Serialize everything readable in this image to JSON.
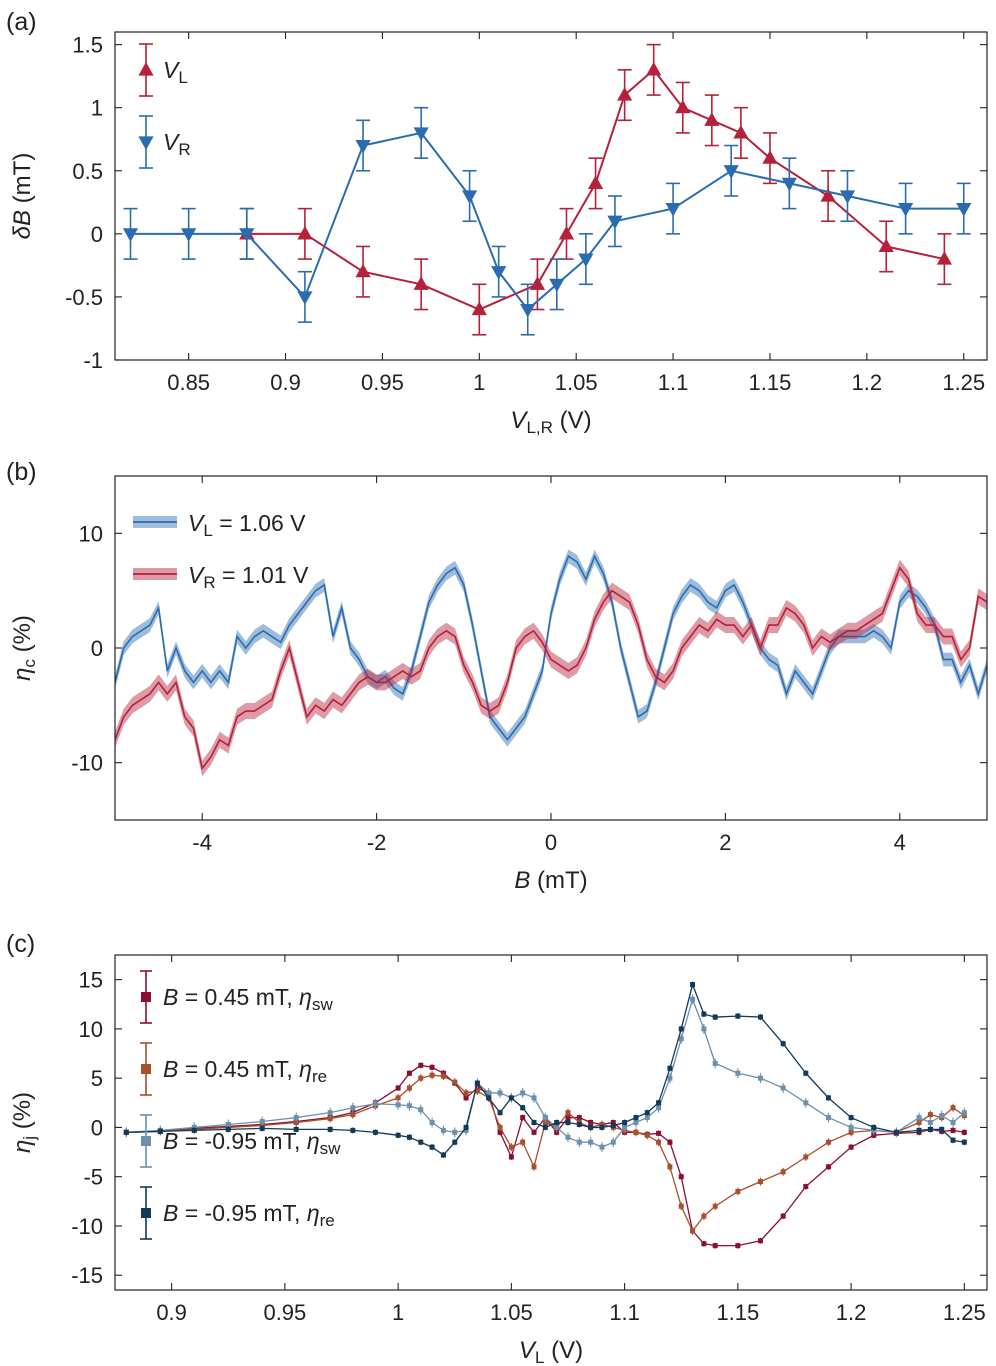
{
  "colors": {
    "red": "#b5203a",
    "blue": "#2b6cb0",
    "dark_red": "#8b1030",
    "orange": "#a7502c",
    "light_blue": "#6d90ac",
    "navy": "#123a5a"
  },
  "chart_data": [
    {
      "type": "line",
      "panel_label": "(a)",
      "xlabel": {
        "main": "V",
        "sub": "L,R",
        "unit": " (V)"
      },
      "ylabel": {
        "main": "δB",
        "unit": " (mT)"
      },
      "xlim": [
        0.812,
        1.262
      ],
      "ylim": [
        -1.0,
        1.6
      ],
      "xticks": [
        0.85,
        0.9,
        0.95,
        1.0,
        1.05,
        1.1,
        1.15,
        1.2,
        1.25
      ],
      "xtick_labels": [
        "0.85",
        "0.9",
        "0.95",
        "1",
        "1.05",
        "1.1",
        "1.15",
        "1.2",
        "1.25"
      ],
      "yticks": [
        -1,
        -0.5,
        0,
        0.5,
        1,
        1.5
      ],
      "ytick_labels": [
        "-1",
        "-0.5",
        "0",
        "0.5",
        "1",
        "1.5"
      ],
      "series": [
        {
          "name": "V_L",
          "label_main": "V",
          "label_sub": "L",
          "color": "#b5203a",
          "marker": "triangle-up",
          "x": [
            0.88,
            0.91,
            0.94,
            0.97,
            1.0,
            1.03,
            1.045,
            1.06,
            1.075,
            1.09,
            1.105,
            1.12,
            1.135,
            1.15,
            1.18,
            1.21,
            1.24
          ],
          "y": [
            0,
            0,
            -0.3,
            -0.4,
            -0.6,
            -0.4,
            0,
            0.4,
            1.1,
            1.3,
            1.0,
            0.9,
            0.8,
            0.6,
            0.3,
            -0.1,
            -0.2
          ],
          "err": 0.2
        },
        {
          "name": "V_R",
          "label_main": "V",
          "label_sub": "R",
          "color": "#2b6cb0",
          "marker": "triangle-down",
          "x": [
            0.82,
            0.85,
            0.88,
            0.91,
            0.94,
            0.97,
            0.995,
            1.01,
            1.025,
            1.04,
            1.055,
            1.07,
            1.1,
            1.13,
            1.16,
            1.19,
            1.22,
            1.25
          ],
          "y": [
            0,
            0,
            0,
            -0.5,
            0.7,
            0.8,
            0.3,
            -0.3,
            -0.6,
            -0.4,
            -0.2,
            0.1,
            0.2,
            0.5,
            0.4,
            0.3,
            0.2,
            0.2
          ],
          "err": 0.2
        }
      ]
    },
    {
      "type": "line",
      "panel_label": "(b)",
      "xlabel": {
        "main": "B",
        "sub": "",
        "unit": " (mT)"
      },
      "ylabel": {
        "main": "η",
        "sub": "c",
        "unit": " (%)"
      },
      "xlim": [
        -5,
        5
      ],
      "ylim": [
        -15,
        15
      ],
      "xticks": [
        -4,
        -2,
        0,
        2,
        4
      ],
      "xtick_labels": [
        "-4",
        "-2",
        "0",
        "2",
        "4"
      ],
      "yticks": [
        -10,
        0,
        10
      ],
      "ytick_labels": [
        "-10",
        "0",
        "10"
      ],
      "series": [
        {
          "name": "V_L = 1.06 V",
          "label_main": "V",
          "label_sub": "L",
          "label_rest": " = 1.06 V",
          "color": "#2b6cb0",
          "x": [
            -5,
            -4.9,
            -4.8,
            -4.7,
            -4.6,
            -4.5,
            -4.4,
            -4.3,
            -4.2,
            -4.1,
            -4.0,
            -3.9,
            -3.8,
            -3.7,
            -3.6,
            -3.5,
            -3.4,
            -3.3,
            -3.2,
            -3.1,
            -3.0,
            -2.9,
            -2.8,
            -2.7,
            -2.6,
            -2.5,
            -2.4,
            -2.3,
            -2.2,
            -2.1,
            -2.0,
            -1.9,
            -1.8,
            -1.7,
            -1.6,
            -1.5,
            -1.4,
            -1.3,
            -1.2,
            -1.1,
            -1.0,
            -0.9,
            -0.8,
            -0.7,
            -0.6,
            -0.5,
            -0.4,
            -0.3,
            -0.2,
            -0.1,
            0.0,
            0.1,
            0.2,
            0.3,
            0.4,
            0.5,
            0.6,
            0.7,
            0.8,
            0.9,
            1.0,
            1.1,
            1.2,
            1.3,
            1.4,
            1.5,
            1.6,
            1.7,
            1.8,
            1.9,
            2.0,
            2.1,
            2.2,
            2.3,
            2.4,
            2.5,
            2.6,
            2.7,
            2.8,
            2.9,
            3.0,
            3.1,
            3.2,
            3.3,
            3.4,
            3.5,
            3.6,
            3.7,
            3.8,
            3.9,
            4.0,
            4.1,
            4.2,
            4.3,
            4.4,
            4.5,
            4.6,
            4.7,
            4.8,
            4.9,
            5.0
          ],
          "y": [
            -3,
            0,
            1,
            1.5,
            2,
            3.5,
            -2,
            0,
            -2,
            -3,
            -2,
            -3,
            -2,
            -3,
            1,
            0,
            1,
            1.5,
            1,
            0.5,
            2,
            3,
            4,
            5,
            5.5,
            1,
            3.5,
            0,
            -1,
            -2.5,
            -3,
            -2.5,
            -3.5,
            -4,
            -2,
            1,
            4,
            5.5,
            6.5,
            7,
            5.5,
            2,
            -2,
            -6,
            -7,
            -8,
            -7,
            -6,
            -4,
            -2,
            3,
            6,
            8,
            7.5,
            6,
            8,
            6.5,
            4,
            0,
            -3,
            -6,
            -5.5,
            -3,
            0,
            3,
            4.5,
            5.5,
            5,
            4,
            3.5,
            5,
            5.5,
            4,
            2,
            0,
            -1,
            -1.5,
            -4,
            -2,
            -3,
            -4,
            -2,
            0,
            1,
            1,
            1,
            1,
            1.5,
            1,
            0,
            4,
            5,
            4.5,
            3.5,
            2,
            -1,
            -1,
            -3,
            -1.5,
            -4,
            -1.5
          ],
          "band": 0.6
        },
        {
          "name": "V_R = 1.01 V",
          "label_main": "V",
          "label_sub": "R",
          "label_rest": " = 1.01 V",
          "color": "#b5203a",
          "x": [
            -5,
            -4.9,
            -4.8,
            -4.7,
            -4.6,
            -4.5,
            -4.4,
            -4.3,
            -4.2,
            -4.1,
            -4.0,
            -3.9,
            -3.8,
            -3.7,
            -3.6,
            -3.5,
            -3.4,
            -3.3,
            -3.2,
            -3.1,
            -3.0,
            -2.9,
            -2.8,
            -2.7,
            -2.6,
            -2.5,
            -2.4,
            -2.3,
            -2.2,
            -2.1,
            -2.0,
            -1.9,
            -1.8,
            -1.7,
            -1.6,
            -1.5,
            -1.4,
            -1.3,
            -1.2,
            -1.1,
            -1.0,
            -0.9,
            -0.8,
            -0.7,
            -0.6,
            -0.5,
            -0.4,
            -0.3,
            -0.2,
            -0.1,
            0.0,
            0.1,
            0.2,
            0.3,
            0.4,
            0.5,
            0.6,
            0.7,
            0.8,
            0.9,
            1.0,
            1.1,
            1.2,
            1.3,
            1.4,
            1.5,
            1.6,
            1.7,
            1.8,
            1.9,
            2.0,
            2.1,
            2.2,
            2.3,
            2.4,
            2.5,
            2.6,
            2.7,
            2.8,
            2.9,
            3.0,
            3.1,
            3.2,
            3.3,
            3.4,
            3.5,
            3.6,
            3.7,
            3.8,
            3.9,
            4.0,
            4.1,
            4.2,
            4.3,
            4.4,
            4.5,
            4.6,
            4.7,
            4.8,
            4.9,
            5.0
          ],
          "y": [
            -8,
            -6,
            -5,
            -4.5,
            -4,
            -3,
            -4,
            -3,
            -6,
            -7,
            -10.5,
            -9.5,
            -8,
            -8.5,
            -6,
            -5.5,
            -5.5,
            -5,
            -4.5,
            -2,
            0,
            -3,
            -6,
            -5,
            -5.5,
            -4.5,
            -5,
            -4,
            -3,
            -2.5,
            -3,
            -3,
            -2.5,
            -2,
            -2.5,
            -2,
            0,
            1,
            1.5,
            1,
            -1.5,
            -3,
            -5,
            -5.5,
            -5,
            -3,
            0,
            1,
            1.5,
            0.5,
            -1,
            -1.5,
            -2,
            -1.5,
            0,
            2.5,
            4,
            5,
            4.5,
            4,
            2,
            -1,
            -2.5,
            -3,
            -2,
            0,
            1,
            2,
            1.5,
            2.5,
            2,
            2,
            1,
            2,
            0,
            2,
            2,
            3.5,
            3,
            2,
            0,
            1,
            0.5,
            1,
            1.5,
            1.5,
            2,
            2.5,
            3,
            5,
            7,
            6,
            3,
            2,
            2,
            1,
            1,
            -1,
            0,
            4.5,
            4
          ],
          "band": 0.7
        }
      ]
    },
    {
      "type": "line",
      "panel_label": "(c)",
      "xlabel": {
        "main": "V",
        "sub": "L",
        "unit": " (V)"
      },
      "ylabel": {
        "main": "η",
        "sub": "j",
        "unit": " (%)"
      },
      "xlim": [
        0.875,
        1.26
      ],
      "ylim": [
        -16.5,
        17.5
      ],
      "xticks": [
        0.9,
        0.95,
        1.0,
        1.05,
        1.1,
        1.15,
        1.2,
        1.25
      ],
      "xtick_labels": [
        "0.9",
        "0.95",
        "1",
        "1.05",
        "1.1",
        "1.15",
        "1.2",
        "1.25"
      ],
      "yticks": [
        -15,
        -10,
        -5,
        0,
        5,
        10,
        15
      ],
      "ytick_labels": [
        "-15",
        "-10",
        "-5",
        "0",
        "5",
        "10",
        "15"
      ],
      "x": [
        0.88,
        0.895,
        0.91,
        0.925,
        0.94,
        0.955,
        0.97,
        0.98,
        0.99,
        1.0,
        1.005,
        1.01,
        1.015,
        1.02,
        1.025,
        1.03,
        1.035,
        1.04,
        1.045,
        1.05,
        1.055,
        1.06,
        1.065,
        1.07,
        1.075,
        1.08,
        1.085,
        1.09,
        1.095,
        1.1,
        1.105,
        1.11,
        1.115,
        1.12,
        1.125,
        1.13,
        1.135,
        1.14,
        1.15,
        1.16,
        1.17,
        1.18,
        1.19,
        1.2,
        1.21,
        1.22,
        1.23,
        1.235,
        1.24,
        1.245,
        1.25
      ],
      "series": [
        {
          "name": "B = 0.45 mT, η_sw",
          "label_pre": "B",
          "label_mid": " = 0.45 mT, ",
          "label_eta": "η",
          "label_sub": "sw",
          "color": "#8b1030",
          "y": [
            -0.5,
            -0.4,
            -0.1,
            0.1,
            0.3,
            0.6,
            1.0,
            1.5,
            2.5,
            4.0,
            5.5,
            6.3,
            6.1,
            5.5,
            4.5,
            3.0,
            4.0,
            3.5,
            -0.5,
            -3.0,
            1.0,
            -0.5,
            1.0,
            -0.5,
            1.0,
            1.0,
            0.5,
            0.3,
            0.5,
            -0.5,
            -0.5,
            -0.7,
            -0.6,
            -1.5,
            -5.0,
            -10.5,
            -11.8,
            -12.0,
            -12.0,
            -11.5,
            -9.0,
            -6.0,
            -4.0,
            -2.0,
            -0.8,
            -0.6,
            -0.5,
            -0.2,
            -0.4,
            -0.3,
            -0.5
          ],
          "err": 0.3
        },
        {
          "name": "B = 0.45 mT, η_re",
          "label_pre": "B",
          "label_mid": " = 0.45 mT, ",
          "label_eta": "η",
          "label_sub": "re",
          "color": "#a7502c",
          "y": [
            -0.5,
            -0.4,
            -0.2,
            0.0,
            0.2,
            0.5,
            0.9,
            1.3,
            2.2,
            3.0,
            4.0,
            5.0,
            5.3,
            5.2,
            4.6,
            3.5,
            3.7,
            3.0,
            0.0,
            -2.0,
            -1.5,
            -4.0,
            0.5,
            0.0,
            1.5,
            0.5,
            0.0,
            0.3,
            0.0,
            -0.3,
            -0.5,
            -0.8,
            -1.5,
            -4.0,
            -8.0,
            -10.5,
            -9.0,
            -8.0,
            -6.5,
            -5.5,
            -4.5,
            -3.0,
            -1.5,
            -0.5,
            -0.3,
            -0.5,
            0.5,
            1.3,
            1.0,
            2.0,
            1.2
          ],
          "err": 0.4
        },
        {
          "name": "B = -0.95 mT, η_sw",
          "label_pre": "B",
          "label_mid": " = -0.95 mT, ",
          "label_eta": "η",
          "label_sub": "sw",
          "color": "#6d90ac",
          "y": [
            -0.5,
            -0.3,
            0.0,
            0.3,
            0.6,
            1.0,
            1.5,
            2.0,
            2.4,
            2.3,
            2.2,
            1.8,
            0.5,
            -0.3,
            -0.5,
            -0.3,
            4.5,
            3.5,
            3.5,
            3.0,
            3.5,
            3.0,
            1.0,
            0.0,
            -1.0,
            -1.5,
            -1.5,
            -2.0,
            -1.5,
            0.0,
            0.5,
            1.0,
            2.0,
            5.0,
            9.0,
            13.0,
            10.0,
            6.5,
            5.5,
            5.0,
            4.0,
            2.5,
            1.0,
            0.0,
            -0.3,
            -0.5,
            1.0,
            0.5,
            1.2,
            0.5,
            1.5
          ],
          "err": 0.5
        },
        {
          "name": "B = -0.95 mT, η_re",
          "label_pre": "B",
          "label_mid": " = -0.95 mT, ",
          "label_eta": "η",
          "label_sub": "re",
          "color": "#123a5a",
          "y": [
            -0.5,
            -0.4,
            -0.3,
            -0.2,
            -0.1,
            -0.2,
            -0.2,
            -0.3,
            -0.5,
            -0.8,
            -1.0,
            -1.5,
            -2.0,
            -2.8,
            -1.5,
            0.0,
            4.5,
            3.0,
            1.5,
            3.0,
            2.0,
            0.5,
            0.0,
            0.5,
            0.5,
            0.3,
            0.0,
            0.0,
            0.2,
            0.5,
            1.0,
            1.5,
            2.5,
            6.0,
            10.0,
            14.5,
            11.5,
            11.2,
            11.3,
            11.2,
            8.5,
            5.5,
            3.0,
            1.0,
            0.0,
            -0.5,
            -0.3,
            -0.2,
            -0.2,
            -1.3,
            -1.5
          ],
          "err": 0.3
        }
      ]
    }
  ]
}
